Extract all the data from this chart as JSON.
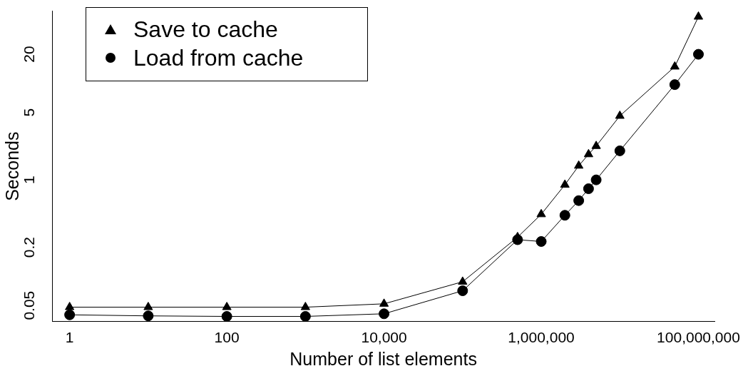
{
  "chart_data": {
    "type": "line",
    "xlabel": "Number of list elements",
    "ylabel": "Seconds",
    "log": "xy",
    "grid": false,
    "legend": "top left",
    "xlim": [
      0.6,
      160000000
    ],
    "ylim": [
      0.034,
      56
    ],
    "xticks": [
      1,
      100,
      {
        "value": 10000,
        "label": "10,000"
      },
      {
        "value": 1000000,
        "label": "1,000,000"
      },
      {
        "value": 100000000,
        "label": "100,000,000"
      }
    ],
    "yticks": [
      0.05,
      0.2,
      1,
      5,
      20
    ],
    "series": [
      {
        "name": "Save to cache",
        "color": "#000000",
        "marker": "triangle",
        "x": [
          1,
          10,
          100,
          1000,
          10000,
          100000,
          500000,
          1000000,
          2000000,
          3000000,
          4000000,
          5000000,
          10000000,
          50000000,
          100000000
        ],
        "values": [
          0.048,
          0.048,
          0.048,
          0.048,
          0.052,
          0.088,
          0.255,
          0.44,
          0.89,
          1.4,
          1.84,
          2.24,
          4.6,
          14.9,
          49
        ]
      },
      {
        "name": "Load from cache",
        "color": "#000000",
        "marker": "circle",
        "x": [
          1,
          10,
          100,
          1000,
          10000,
          100000,
          500000,
          1000000,
          2000000,
          3000000,
          4000000,
          5000000,
          10000000,
          50000000,
          100000000
        ],
        "values": [
          0.04,
          0.039,
          0.0385,
          0.0385,
          0.041,
          0.071,
          0.24,
          0.23,
          0.43,
          0.61,
          0.81,
          1.0,
          2.0,
          9.7,
          20
        ]
      }
    ]
  }
}
